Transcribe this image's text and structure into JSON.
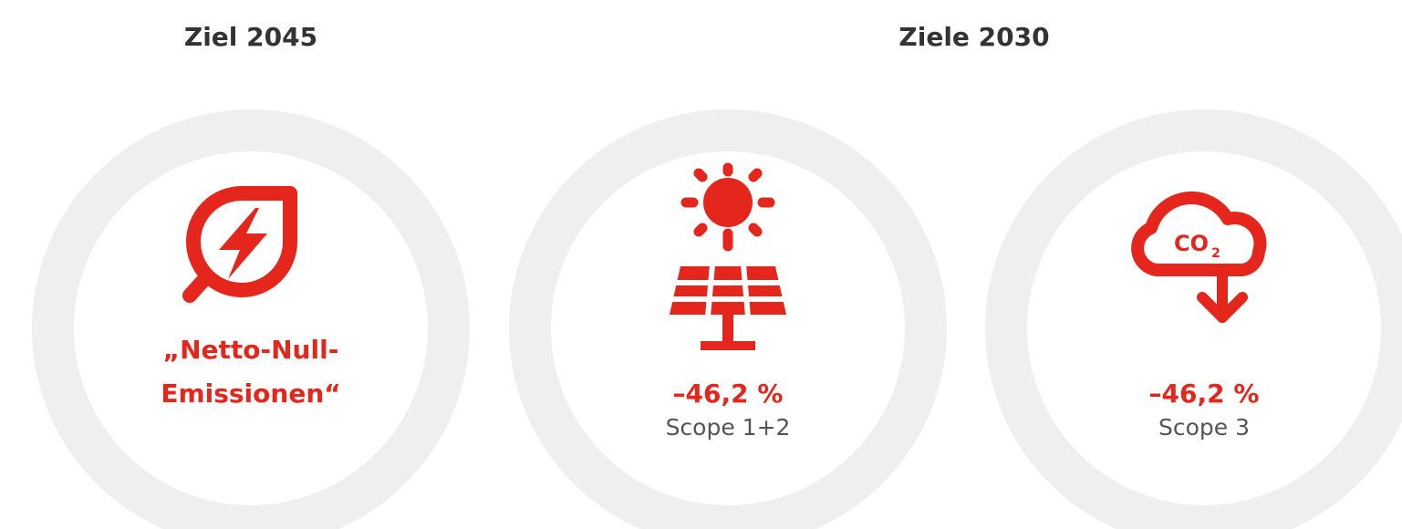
{
  "header_left": "Ziel 2045",
  "header_right": "Ziele 2030",
  "cards": [
    {
      "label_lines": [
        "„Netto-Null-",
        "Emissionen“"
      ]
    },
    {
      "value": "–46,2 %",
      "caption": "Scope 1+2"
    },
    {
      "value": "–46,2 %",
      "caption": "Scope 3"
    }
  ],
  "icon_text": {
    "main": "CO",
    "sub": "2"
  }
}
